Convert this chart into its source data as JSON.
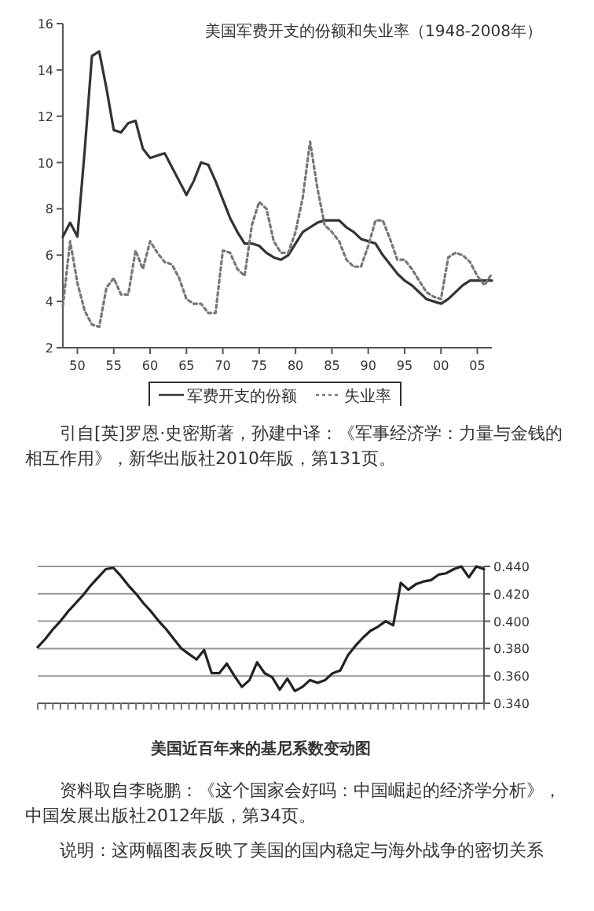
{
  "chart_data": [
    {
      "type": "line",
      "title": "美国军费开支的份额和失业率（1948-2008年）",
      "x": [
        1948,
        1949,
        1950,
        1951,
        1952,
        1953,
        1954,
        1955,
        1956,
        1957,
        1958,
        1959,
        1960,
        1961,
        1962,
        1963,
        1964,
        1965,
        1966,
        1967,
        1968,
        1969,
        1970,
        1971,
        1972,
        1973,
        1974,
        1975,
        1976,
        1977,
        1978,
        1979,
        1980,
        1981,
        1982,
        1983,
        1984,
        1985,
        1986,
        1987,
        1988,
        1989,
        1990,
        1991,
        1992,
        1993,
        1994,
        1995,
        1996,
        1997,
        1998,
        1999,
        2000,
        2001,
        2002,
        2003,
        2004,
        2005,
        2006,
        2007
      ],
      "xlim": [
        1948,
        2007
      ],
      "xticks": [
        {
          "value": 1950,
          "label": "50"
        },
        {
          "value": 1955,
          "label": "55"
        },
        {
          "value": 1960,
          "label": "60"
        },
        {
          "value": 1965,
          "label": "65"
        },
        {
          "value": 1970,
          "label": "70"
        },
        {
          "value": 1975,
          "label": "75"
        },
        {
          "value": 1980,
          "label": "80"
        },
        {
          "value": 1985,
          "label": "85"
        },
        {
          "value": 1990,
          "label": "90"
        },
        {
          "value": 1995,
          "label": "95"
        },
        {
          "value": 2000,
          "label": "00"
        },
        {
          "value": 2005,
          "label": "05"
        }
      ],
      "ylim": [
        2,
        16
      ],
      "yticks": [
        2,
        4,
        6,
        8,
        10,
        12,
        14,
        16
      ],
      "legend": "bottom",
      "series": [
        {
          "name": "军费开支的份额",
          "color": "#333333",
          "line_style": "solid",
          "values": [
            6.8,
            7.4,
            6.8,
            10.5,
            14.6,
            14.8,
            13.2,
            11.4,
            11.3,
            11.7,
            11.8,
            10.6,
            10.2,
            10.3,
            10.4,
            9.8,
            9.2,
            8.6,
            9.2,
            10.0,
            9.9,
            9.2,
            8.4,
            7.6,
            7.0,
            6.5,
            6.5,
            6.4,
            6.1,
            5.9,
            5.8,
            6.0,
            6.5,
            7.0,
            7.2,
            7.4,
            7.5,
            7.5,
            7.5,
            7.2,
            7.0,
            6.7,
            6.6,
            6.5,
            6.0,
            5.6,
            5.2,
            4.9,
            4.7,
            4.4,
            4.1,
            4.0,
            3.9,
            4.1,
            4.4,
            4.7,
            4.9,
            4.9,
            4.9,
            4.9
          ]
        },
        {
          "name": "失业率",
          "color": "#777777",
          "line_style": "dotted",
          "values": [
            3.8,
            6.6,
            4.8,
            3.6,
            3.0,
            2.9,
            4.6,
            5.0,
            4.3,
            4.3,
            6.2,
            5.4,
            6.6,
            6.1,
            5.7,
            5.6,
            5.0,
            4.1,
            3.9,
            3.9,
            3.5,
            3.5,
            6.2,
            6.1,
            5.4,
            5.1,
            7.3,
            8.3,
            8.0,
            6.6,
            6.1,
            6.1,
            7.0,
            8.5,
            10.9,
            8.9,
            7.3,
            7.0,
            6.6,
            5.8,
            5.5,
            5.5,
            6.4,
            7.5,
            7.5,
            6.7,
            5.8,
            5.8,
            5.4,
            4.9,
            4.4,
            4.2,
            4.1,
            5.9,
            6.1,
            6.0,
            5.7,
            5.1,
            4.7,
            5.2
          ]
        }
      ],
      "annotations": [
        "引自[英]罗恩·史密斯著，孙建中译：《军事经济学：力量与金钱的相互作用》，新华出版社2010年版，第131页。"
      ]
    },
    {
      "type": "line",
      "title": "美国近百年来的基尼系数变动图",
      "categories": [
        null,
        null,
        null,
        null,
        null,
        null,
        null,
        null,
        null,
        null,
        null,
        null,
        null,
        null,
        null,
        null,
        null,
        null,
        null,
        null,
        null,
        null,
        null,
        null,
        null,
        null,
        null,
        null,
        null,
        null,
        null,
        null,
        null,
        null,
        null,
        null,
        null,
        null,
        null,
        null,
        null,
        null,
        null,
        null,
        null,
        null,
        null,
        null,
        null,
        null,
        null,
        null,
        null,
        null,
        null,
        null,
        null,
        null,
        null,
        null
      ],
      "values": [
        0.381,
        0.387,
        0.394,
        0.4,
        0.407,
        0.413,
        0.419,
        0.426,
        0.432,
        0.438,
        0.439,
        0.433,
        0.426,
        0.42,
        0.413,
        0.407,
        0.4,
        0.394,
        0.387,
        0.38,
        0.376,
        0.372,
        0.379,
        0.362,
        0.362,
        0.369,
        0.36,
        0.352,
        0.357,
        0.37,
        0.362,
        0.359,
        0.35,
        0.358,
        0.349,
        0.352,
        0.357,
        0.355,
        0.357,
        0.362,
        0.364,
        0.375,
        0.382,
        0.388,
        0.393,
        0.396,
        0.4,
        0.397,
        0.428,
        0.423,
        0.427,
        0.429,
        0.43,
        0.434,
        0.435,
        0.438,
        0.44,
        0.432,
        0.44,
        0.438
      ],
      "color": "#222222",
      "ylim": [
        0.34,
        0.44
      ],
      "yticks": [
        {
          "value": 0.34,
          "label": "0.340"
        },
        {
          "value": 0.36,
          "label": "0.360"
        },
        {
          "value": 0.38,
          "label": "0.380"
        },
        {
          "value": 0.4,
          "label": "0.400"
        },
        {
          "value": 0.42,
          "label": "0.420"
        },
        {
          "value": 0.44,
          "label": "0.440"
        }
      ],
      "grid": "y",
      "annotations": [
        "资料取自李晓鹏：《这个国家会好吗：中国崛起的经济学分析》，中国发展出版社2012年版，第34页。",
        "说明：这两幅图表反映了美国的国内稳定与海外战争的密切关系"
      ]
    }
  ]
}
